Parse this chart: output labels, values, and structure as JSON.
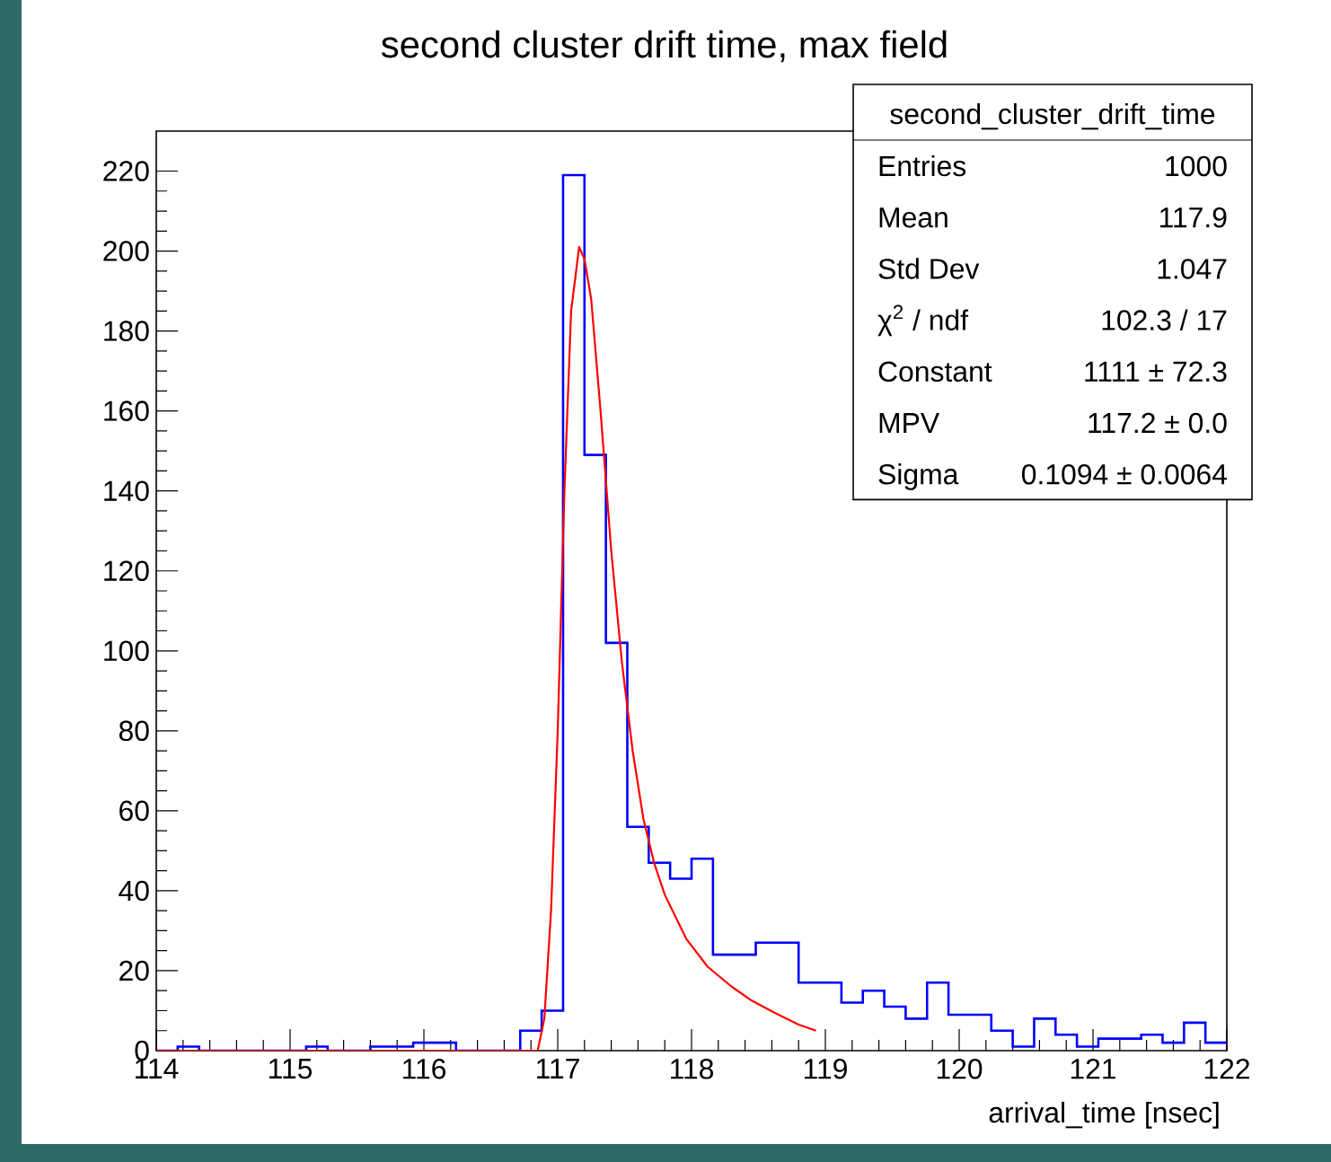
{
  "chart_data": {
    "type": "histogram",
    "title": "second cluster drift time, max field",
    "xlabel": "arrival_time [nsec]",
    "series": [
      {
        "color": "#0000ff",
        "bins": [
          114,
          114.16,
          114.32,
          114.48,
          114.64,
          114.8,
          114.96,
          115.12,
          115.28,
          115.44,
          115.6,
          115.76,
          115.92,
          116.08,
          116.24,
          116.4,
          116.56,
          116.72,
          116.88,
          117.04,
          117.2,
          117.36,
          117.52,
          117.68,
          117.84,
          118,
          118.16,
          118.32,
          118.48,
          118.64,
          118.8,
          118.96,
          119.12,
          119.28,
          119.44,
          119.6,
          119.76,
          119.92,
          120.08,
          120.24,
          120.4,
          120.56,
          120.72,
          120.88,
          121.04,
          121.2,
          121.36,
          121.52,
          121.68,
          121.84,
          122
        ],
        "values": [
          0,
          1,
          0,
          0,
          0,
          0,
          0,
          1,
          0,
          0,
          1,
          1,
          2,
          2,
          0,
          0,
          0,
          5,
          10,
          219,
          149,
          102,
          56,
          47,
          43,
          48,
          24,
          24,
          27,
          27,
          17,
          17,
          12,
          15,
          11,
          8,
          17,
          9,
          9,
          5,
          1,
          8,
          4,
          1,
          3,
          3,
          4,
          2,
          7,
          2
        ]
      },
      {
        "type": "line",
        "color": "#ff0000",
        "x": [
          114,
          116.85,
          116.9,
          116.95,
          117.0,
          117.05,
          117.1,
          117.16,
          117.2,
          117.25,
          117.32,
          117.4,
          117.48,
          117.56,
          117.64,
          117.72,
          117.8,
          117.96,
          118.12,
          118.3,
          118.45,
          118.62,
          118.8,
          118.93
        ],
        "values": [
          0,
          0,
          8,
          35,
          80,
          140,
          185,
          201,
          198,
          188,
          160,
          125,
          97,
          75,
          58,
          47,
          39,
          28,
          21,
          16,
          12.5,
          9.5,
          6.5,
          5
        ]
      }
    ],
    "xlim": [
      114,
      122
    ],
    "ylim": [
      0,
      230
    ],
    "xticks": [
      114,
      115,
      116,
      117,
      118,
      119,
      120,
      121,
      122
    ],
    "yticks": [
      0,
      20,
      40,
      60,
      80,
      100,
      120,
      140,
      160,
      180,
      200,
      220
    ],
    "annotations": [
      "second_cluster_drift_time",
      "Entries",
      "1000",
      "Mean",
      "117.9",
      "Std Dev",
      "1.047",
      "χ$^{2}$ / ndf",
      "102.3 / 17",
      "Constant",
      "1111 ± 72.3",
      "MPV",
      "117.2 ± 0.0",
      "Sigma",
      "0.1094 ± 0.0064"
    ]
  }
}
